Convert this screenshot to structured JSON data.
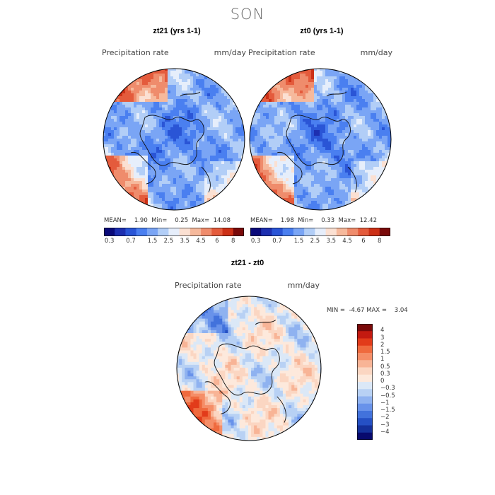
{
  "season": "SON",
  "panels": [
    {
      "title": "zt21 (yrs 1-1)",
      "variable": "Precipitation rate",
      "units": "mm/day",
      "mean_label": "MEAN=",
      "mean": "1.90",
      "min_label": "Min=",
      "min": "0.25",
      "max_label": "Max=",
      "max": "14.08"
    },
    {
      "title": "zt0 (yrs 1-1)",
      "variable": "Precipitation rate",
      "units": "mm/day",
      "mean_label": "MEAN=",
      "mean": "1.98",
      "min_label": "Min=",
      "min": "0.33",
      "max_label": "Max=",
      "max": "12.42"
    }
  ],
  "diff_panel": {
    "title": "zt21 - zt0",
    "variable": "Precipitation rate",
    "units": "mm/day",
    "min_label": "MIN =",
    "min": "-4.67",
    "max_label": "MAX =",
    "max": "3.04"
  },
  "colorbar_abs": {
    "ticks": [
      "0.3",
      "0.7",
      "1.5",
      "2.5",
      "3.5",
      "4.5",
      "6",
      "8"
    ],
    "colors": [
      "#0a0a7a",
      "#1d2fb0",
      "#2a55d6",
      "#4a7ff0",
      "#7aa5f5",
      "#b2cef7",
      "#e6eefb",
      "#fbe0d2",
      "#f6b99c",
      "#ef8c6c",
      "#e45b3c",
      "#cc3016",
      "#7a0a0a"
    ]
  },
  "colorbar_diff": {
    "ticks": [
      "4",
      "3",
      "2",
      "1.5",
      "1",
      "0.5",
      "0.3",
      "0",
      "−0.3",
      "−0.5",
      "−1",
      "−1.5",
      "−2",
      "−3",
      "−4"
    ],
    "colors": [
      "#7a0a0a",
      "#c41a10",
      "#e23b1a",
      "#ef6a3e",
      "#f58e68",
      "#f8b496",
      "#fbd6c2",
      "#fde9dc",
      "#dbe8f7",
      "#b8d1f4",
      "#8fb2f0",
      "#6892ea",
      "#4272dc",
      "#2550c4",
      "#14309a",
      "#080a6e"
    ]
  },
  "chart_data": [
    {
      "type": "heatmap",
      "title": "zt21 (yrs 1-1)",
      "subtitle": "Precipitation rate",
      "units": "mm/day",
      "projection": "north polar stereographic",
      "stats": {
        "mean": 1.9,
        "min": 0.25,
        "max": 14.08
      },
      "contour_levels": [
        0.3,
        0.7,
        1.5,
        2.5,
        3.5,
        4.5,
        6,
        8
      ]
    },
    {
      "type": "heatmap",
      "title": "zt0 (yrs 1-1)",
      "subtitle": "Precipitation rate",
      "units": "mm/day",
      "projection": "north polar stereographic",
      "stats": {
        "mean": 1.98,
        "min": 0.33,
        "max": 12.42
      },
      "contour_levels": [
        0.3,
        0.7,
        1.5,
        2.5,
        3.5,
        4.5,
        6,
        8
      ]
    },
    {
      "type": "heatmap",
      "title": "zt21 - zt0",
      "subtitle": "Precipitation rate",
      "units": "mm/day",
      "projection": "north polar stereographic",
      "stats": {
        "min": -4.67,
        "max": 3.04
      },
      "contour_levels": [
        -4,
        -3,
        -2,
        -1.5,
        -1,
        -0.5,
        -0.3,
        0,
        0.3,
        0.5,
        1,
        1.5,
        2,
        3,
        4
      ]
    }
  ]
}
